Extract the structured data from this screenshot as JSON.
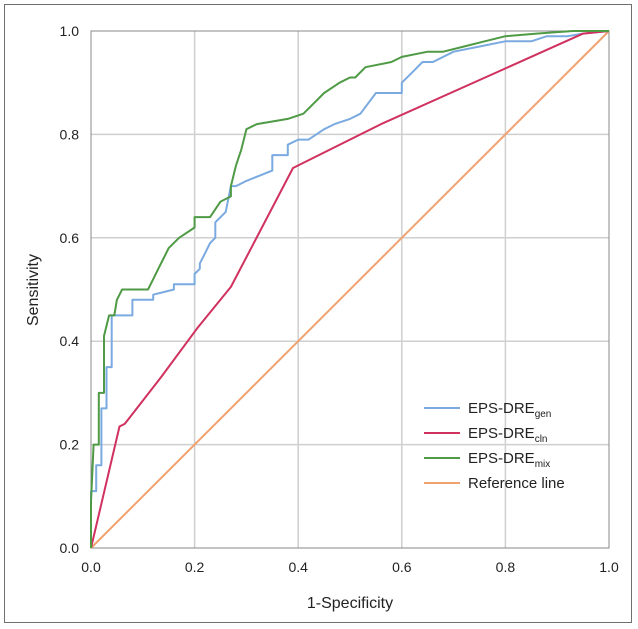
{
  "chart_data": {
    "type": "line",
    "title": "",
    "xlabel": "1-Specificity",
    "ylabel": "Sensitivity",
    "xlim": [
      0,
      1
    ],
    "ylim": [
      0,
      1
    ],
    "x_ticks": [
      "0.0",
      "0.2",
      "0.4",
      "0.6",
      "0.8",
      "1.0"
    ],
    "y_ticks": [
      "0.0",
      "0.2",
      "0.4",
      "0.6",
      "0.8",
      "1.0"
    ],
    "grid": true,
    "legend_position": "bottom-right",
    "series": [
      {
        "name": "EPS-DRE",
        "subscript": "gen",
        "color": "#7aaae0",
        "points": [
          [
            0,
            0
          ],
          [
            0,
            0.11
          ],
          [
            0.01,
            0.11
          ],
          [
            0.01,
            0.16
          ],
          [
            0.02,
            0.16
          ],
          [
            0.02,
            0.27
          ],
          [
            0.03,
            0.27
          ],
          [
            0.03,
            0.35
          ],
          [
            0.04,
            0.35
          ],
          [
            0.04,
            0.45
          ],
          [
            0.08,
            0.45
          ],
          [
            0.08,
            0.48
          ],
          [
            0.12,
            0.48
          ],
          [
            0.12,
            0.49
          ],
          [
            0.16,
            0.5
          ],
          [
            0.16,
            0.51
          ],
          [
            0.2,
            0.51
          ],
          [
            0.2,
            0.53
          ],
          [
            0.21,
            0.54
          ],
          [
            0.21,
            0.55
          ],
          [
            0.22,
            0.57
          ],
          [
            0.23,
            0.59
          ],
          [
            0.24,
            0.6
          ],
          [
            0.24,
            0.63
          ],
          [
            0.26,
            0.65
          ],
          [
            0.27,
            0.7
          ],
          [
            0.28,
            0.7
          ],
          [
            0.3,
            0.71
          ],
          [
            0.35,
            0.73
          ],
          [
            0.35,
            0.76
          ],
          [
            0.38,
            0.76
          ],
          [
            0.38,
            0.78
          ],
          [
            0.4,
            0.79
          ],
          [
            0.42,
            0.79
          ],
          [
            0.45,
            0.81
          ],
          [
            0.47,
            0.82
          ],
          [
            0.5,
            0.83
          ],
          [
            0.52,
            0.84
          ],
          [
            0.55,
            0.88
          ],
          [
            0.6,
            0.88
          ],
          [
            0.6,
            0.9
          ],
          [
            0.62,
            0.92
          ],
          [
            0.64,
            0.94
          ],
          [
            0.66,
            0.94
          ],
          [
            0.7,
            0.96
          ],
          [
            0.75,
            0.97
          ],
          [
            0.8,
            0.98
          ],
          [
            0.85,
            0.98
          ],
          [
            0.88,
            0.99
          ],
          [
            0.92,
            0.99
          ],
          [
            0.95,
            0.995
          ],
          [
            1,
            1
          ]
        ]
      },
      {
        "name": "EPS-DRE",
        "subscript": "cln",
        "color": "#d0315f",
        "points": [
          [
            0,
            0
          ],
          [
            0.055,
            0.235
          ],
          [
            0.065,
            0.24
          ],
          [
            0.135,
            0.33
          ],
          [
            0.205,
            0.425
          ],
          [
            0.27,
            0.505
          ],
          [
            0.39,
            0.735
          ],
          [
            0.56,
            0.82
          ],
          [
            0.95,
            0.995
          ],
          [
            1,
            1
          ]
        ]
      },
      {
        "name": "EPS-DRE",
        "subscript": "mix",
        "color": "#4f9a45",
        "points": [
          [
            0,
            0
          ],
          [
            0,
            0.09
          ],
          [
            0.005,
            0.2
          ],
          [
            0.015,
            0.2
          ],
          [
            0.015,
            0.3
          ],
          [
            0.025,
            0.3
          ],
          [
            0.025,
            0.41
          ],
          [
            0.035,
            0.45
          ],
          [
            0.045,
            0.45
          ],
          [
            0.05,
            0.48
          ],
          [
            0.06,
            0.5
          ],
          [
            0.11,
            0.5
          ],
          [
            0.12,
            0.52
          ],
          [
            0.13,
            0.54
          ],
          [
            0.14,
            0.56
          ],
          [
            0.15,
            0.58
          ],
          [
            0.17,
            0.6
          ],
          [
            0.2,
            0.62
          ],
          [
            0.2,
            0.64
          ],
          [
            0.23,
            0.64
          ],
          [
            0.25,
            0.67
          ],
          [
            0.27,
            0.68
          ],
          [
            0.27,
            0.7
          ],
          [
            0.28,
            0.74
          ],
          [
            0.29,
            0.77
          ],
          [
            0.3,
            0.81
          ],
          [
            0.32,
            0.82
          ],
          [
            0.38,
            0.83
          ],
          [
            0.41,
            0.84
          ],
          [
            0.43,
            0.86
          ],
          [
            0.45,
            0.88
          ],
          [
            0.48,
            0.9
          ],
          [
            0.5,
            0.91
          ],
          [
            0.51,
            0.91
          ],
          [
            0.53,
            0.93
          ],
          [
            0.58,
            0.94
          ],
          [
            0.6,
            0.95
          ],
          [
            0.65,
            0.96
          ],
          [
            0.68,
            0.96
          ],
          [
            0.72,
            0.97
          ],
          [
            0.76,
            0.98
          ],
          [
            0.8,
            0.99
          ],
          [
            0.86,
            0.995
          ],
          [
            0.93,
            1
          ],
          [
            1,
            1
          ]
        ]
      },
      {
        "name": "Reference line",
        "subscript": "",
        "color": "#f0a270",
        "points": [
          [
            0,
            0
          ],
          [
            1,
            1
          ]
        ]
      }
    ]
  }
}
